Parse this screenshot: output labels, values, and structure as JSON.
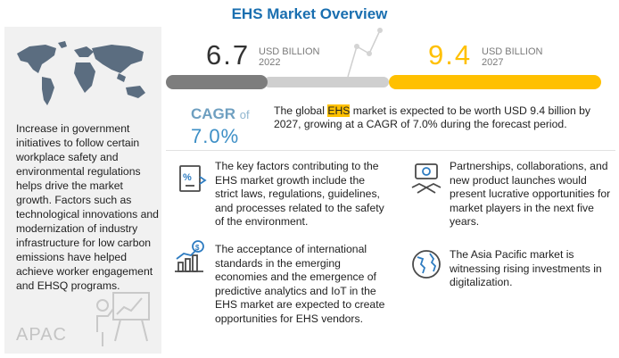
{
  "title": "EHS Market Overview",
  "left_panel": {
    "text": "Increase in government initiatives to follow certain workplace safety and environmental regulations helps drive the market growth. Factors such as technological innovations and modernization of industry infrastructure for low carbon emissions have helped achieve worker engagement and EHSQ programs.",
    "region": "APAC"
  },
  "metrics": {
    "y2022": {
      "value": "6.7",
      "unit": "USD BILLION",
      "year": "2022"
    },
    "y2027": {
      "value": "9.4",
      "unit": "USD BILLION",
      "year": "2027"
    }
  },
  "cagr": {
    "label": "CAGR",
    "of": "of",
    "value": "7.0%"
  },
  "summary": {
    "before": "The global ",
    "highlight": "EHS",
    "after": " market is expected to be worth USD 9.4 billion by 2027, growing at a CAGR of 7.0% during the forecast period."
  },
  "items": {
    "drivers": "The key factors contributing to the EHS market growth include the strict laws, regulations, guidelines, and processes related to the safety of the environment.",
    "opportunities": "The acceptance of international standards in the emerging economies and the emergence of predictive analytics and IoT in the EHS market are expected to create opportunities for EHS vendors.",
    "partnerships": "Partnerships, collaborations, and new product launches would present lucrative opportunities for market players in the next five years.",
    "asia_pacific": "The Asia Pacific market is witnessing rising investments in digitalization."
  },
  "icons": {
    "dollar": "$",
    "percent": "%"
  },
  "colors": {
    "title": "#1a6fb0",
    "accent": "#ffc000",
    "bar_2022": "#7d7d7d",
    "cagr": "#3d8fc6"
  }
}
